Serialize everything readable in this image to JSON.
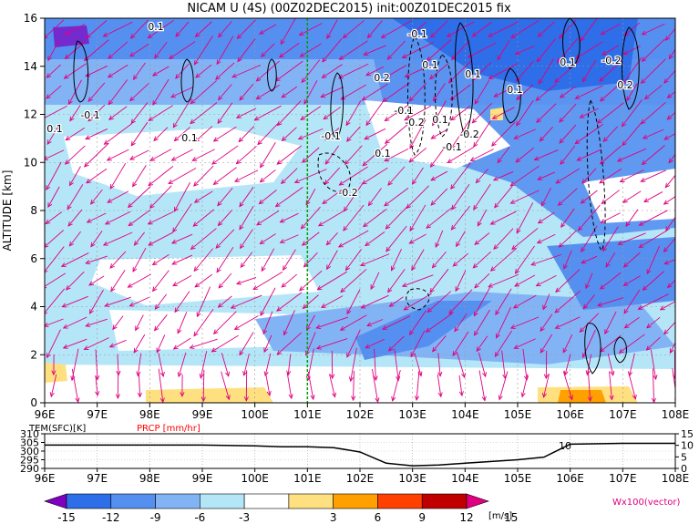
{
  "chart_data": {
    "type": "heatmap",
    "title": "NICAM U (4S) (00Z02DEC2015) init:00Z01DEC2015 fix",
    "main_panel": {
      "ylabel": "ALTITUDE [km]",
      "x_ticks": [
        "96E",
        "97E",
        "98E",
        "99E",
        "100E",
        "101E",
        "102E",
        "103E",
        "104E",
        "105E",
        "106E",
        "107E",
        "108E"
      ],
      "xlim": [
        96,
        108
      ],
      "y_ticks": [
        "0",
        "2",
        "4",
        "6",
        "8",
        "10",
        "12",
        "14",
        "16"
      ],
      "ylim": [
        0,
        16
      ],
      "reference_line_lon": 101,
      "contour_labels": [
        "0.1",
        "-0.1",
        "0.1",
        "0.1",
        "0.2",
        "0.1",
        "0.1",
        "0.1",
        "0.1",
        "-0.1",
        "0.2",
        "-0.2",
        "-0.1",
        "-0.2",
        "0.1",
        "-0.2",
        "-0.1",
        "-0.1",
        "-0.2",
        "0.1"
      ],
      "vector_label": "Wx100(vector)"
    },
    "colorbar": {
      "ticks": [
        "-15",
        "-12",
        "-9",
        "-6",
        "-3",
        "3",
        "6",
        "9",
        "12",
        "15"
      ],
      "unit": "[m/s]",
      "colors": [
        "#8000c0",
        "#2e6ee8",
        "#5590f0",
        "#82b4f5",
        "#b4e6f8",
        "#ffffff",
        "#ffe080",
        "#ffa000",
        "#ff4000",
        "#c00000",
        "#e00080"
      ]
    },
    "sub_panel": {
      "legend": [
        "TEM(SFC)[K]",
        "PRCP [mm/hr]"
      ],
      "legend_colors": [
        "#000000",
        "#ff0000"
      ],
      "left_ticks": [
        "310",
        "305",
        "300",
        "295",
        "290"
      ],
      "left_ylim": [
        290,
        310
      ],
      "right_ticks": [
        "15",
        "10",
        "5",
        "0"
      ],
      "right_ylim": [
        0,
        15
      ],
      "x_ticks": [
        "96E",
        "97E",
        "98E",
        "99E",
        "100E",
        "101E",
        "102E",
        "103E",
        "104E",
        "105E",
        "106E",
        "107E",
        "108E"
      ],
      "curve_label": "10",
      "temperature": {
        "lon": [
          96,
          97,
          98,
          99,
          100,
          100.5,
          101,
          101.5,
          102,
          102.5,
          103,
          103.5,
          104,
          104.5,
          105,
          105.5,
          106,
          107,
          108
        ],
        "values": [
          303.5,
          303.5,
          303.5,
          303.5,
          303.0,
          302.5,
          302.5,
          302.0,
          299.5,
          293.0,
          291.5,
          292.0,
          293.0,
          294.0,
          295.0,
          296.5,
          304.0,
          304.5,
          304.5
        ]
      },
      "precip": {
        "lon": [
          96,
          108
        ],
        "values": [
          0,
          0
        ]
      }
    }
  }
}
